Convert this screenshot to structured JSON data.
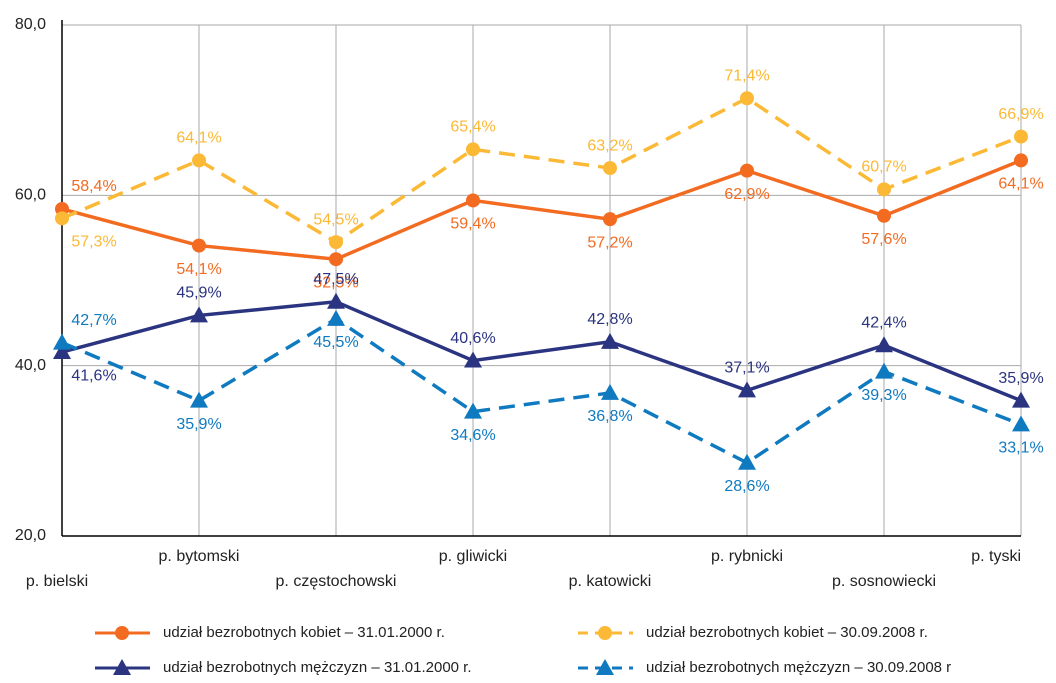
{
  "chart_data": {
    "type": "line",
    "categories": [
      "p. bielski",
      "p. bytomski",
      "p. częstochowski",
      "p. gliwicki",
      "p. katowicki",
      "p. rybnicki",
      "p. sosnowiecki",
      "p. tyski"
    ],
    "series": [
      {
        "name": "udział bezrobotnych kobiet – 31.01.2000 r.",
        "color": "#f26b21",
        "dashed": false,
        "marker": "circle",
        "values": [
          58.4,
          54.1,
          52.5,
          59.4,
          57.2,
          62.9,
          57.6,
          64.1
        ],
        "value_labels": [
          "58,4%",
          "54,1%",
          "52,5%",
          "59,4%",
          "57,2%",
          "62,9%",
          "57,6%",
          "64,1%"
        ]
      },
      {
        "name": "udział bezrobotnych kobiet – 30.09.2008 r.",
        "color": "#fbb935",
        "dashed": true,
        "marker": "circle",
        "values": [
          57.3,
          64.1,
          54.5,
          65.4,
          63.2,
          71.4,
          60.7,
          66.9
        ],
        "value_labels": [
          "57,3%",
          "64,1%",
          "54,5%",
          "65,4%",
          "63,2%",
          "71,4%",
          "60,7%",
          "66,9%"
        ]
      },
      {
        "name": "udział bezrobotnych mężczyzn – 31.01.2000 r.",
        "color": "#2b3480",
        "dashed": false,
        "marker": "triangle",
        "values": [
          41.6,
          45.9,
          47.5,
          40.6,
          42.8,
          37.1,
          42.4,
          35.9
        ],
        "value_labels": [
          "41,6%",
          "45,9%",
          "47,5%",
          "40,6%",
          "42,8%",
          "37,1%",
          "42,4%",
          "35,9%"
        ]
      },
      {
        "name": "udział bezrobotnych mężczyzn – 30.09.2008 r",
        "color": "#0f7ac0",
        "dashed": true,
        "marker": "triangle",
        "values": [
          42.7,
          35.9,
          45.5,
          34.6,
          36.8,
          28.6,
          39.3,
          33.1
        ],
        "value_labels": [
          "42,7%",
          "35,9%",
          "45,5%",
          "34,6%",
          "36,8%",
          "28,6%",
          "39,3%",
          "33,1%"
        ]
      }
    ],
    "ylim": [
      20,
      80
    ],
    "yticks": [
      {
        "value": 20,
        "label": "20,0"
      },
      {
        "value": 40,
        "label": "40,0"
      },
      {
        "value": 60,
        "label": "60,0"
      },
      {
        "value": 80,
        "label": "80,0"
      }
    ],
    "grid": true
  }
}
